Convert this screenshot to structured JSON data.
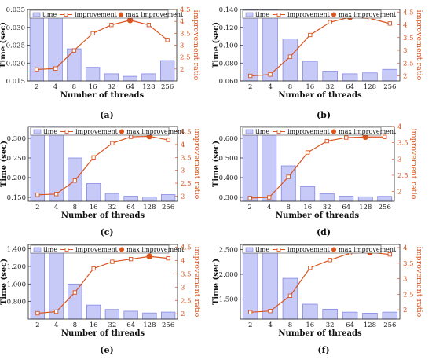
{
  "legend": {
    "time": "time",
    "improvement": "improvement",
    "max": "max improvement"
  },
  "colors": {
    "bar_fill": "#c7c9f7",
    "bar_stroke": "#7b7fe0",
    "line": "#d9541e"
  },
  "chart_data": [
    {
      "type": "bar+line",
      "caption": "(a)",
      "categories": [
        "2",
        "4",
        "8",
        "16",
        "32",
        "64",
        "128",
        "256"
      ],
      "xlabel": "Number of threads",
      "ylabel": "Time (sec)",
      "ylabel_right": "improvement ratio",
      "ylim": [
        0.015,
        0.035
      ],
      "yticks": [
        "0.015",
        "0.020",
        "0.025",
        "0.030",
        "0.035"
      ],
      "ylim_right": [
        1.5,
        4.5
      ],
      "yticks_right": [
        "2",
        "2.5",
        "3",
        "3.5",
        "4",
        "4.5"
      ],
      "series": [
        {
          "name": "time",
          "kind": "bar",
          "values": [
            0.034,
            0.034,
            0.024,
            0.0188,
            0.017,
            0.0163,
            0.017,
            0.0207
          ]
        },
        {
          "name": "improvement",
          "kind": "line",
          "values": [
            1.98,
            2.02,
            2.78,
            3.5,
            3.85,
            4.05,
            3.85,
            3.22
          ]
        }
      ],
      "max_index": 5
    },
    {
      "type": "bar+line",
      "caption": "(b)",
      "categories": [
        "2",
        "4",
        "8",
        "16",
        "32",
        "64",
        "128",
        "256"
      ],
      "xlabel": "Number of threads",
      "ylabel": "Time (sec)",
      "ylabel_right": "improvement ratio",
      "ylim": [
        0.06,
        0.14
      ],
      "yticks": [
        "0.060",
        "0.080",
        "0.100",
        "0.120",
        "0.140"
      ],
      "ylim_right": [
        1.8,
        4.6
      ],
      "yticks_right": [
        "2",
        "2.5",
        "3",
        "3.5",
        "4",
        "4.5"
      ],
      "series": [
        {
          "name": "time",
          "kind": "bar",
          "values": [
            0.144,
            0.144,
            0.107,
            0.082,
            0.071,
            0.068,
            0.069,
            0.073
          ]
        },
        {
          "name": "improvement",
          "kind": "line",
          "values": [
            2.0,
            2.05,
            2.75,
            3.6,
            4.1,
            4.3,
            4.25,
            4.05
          ]
        }
      ],
      "max_index": 5
    },
    {
      "type": "bar+line",
      "caption": "(c)",
      "categories": [
        "2",
        "4",
        "8",
        "16",
        "32",
        "64",
        "128",
        "256"
      ],
      "xlabel": "Number of threads",
      "ylabel": "Time (sec)",
      "ylabel_right": "improvement ratio",
      "ylim": [
        0.14,
        0.33
      ],
      "yticks": [
        "0.150",
        "0.200",
        "0.250",
        "0.300"
      ],
      "ylim_right": [
        1.8,
        4.7
      ],
      "yticks_right": [
        "2",
        "2.5",
        "3",
        "3.5",
        "4",
        "4.5"
      ],
      "series": [
        {
          "name": "time",
          "kind": "bar",
          "values": [
            0.33,
            0.33,
            0.25,
            0.185,
            0.16,
            0.153,
            0.151,
            0.157
          ]
        },
        {
          "name": "improvement",
          "kind": "line",
          "values": [
            2.05,
            2.08,
            2.6,
            3.5,
            4.05,
            4.3,
            4.32,
            4.18
          ]
        }
      ],
      "max_index": 6
    },
    {
      "type": "bar+line",
      "caption": "(d)",
      "categories": [
        "2",
        "4",
        "8",
        "16",
        "32",
        "64",
        "128",
        "256"
      ],
      "xlabel": "Number of threads",
      "ylabel": "Time (sec)",
      "ylabel_right": "improvement ratio",
      "ylim": [
        0.28,
        0.66
      ],
      "yticks": [
        "0.300",
        "0.400",
        "0.500",
        "0.600"
      ],
      "ylim_right": [
        1.7,
        4.0
      ],
      "yticks_right": [
        "2",
        "2.5",
        "3",
        "3.5",
        "4"
      ],
      "series": [
        {
          "name": "time",
          "kind": "bar",
          "values": [
            0.64,
            0.64,
            0.46,
            0.355,
            0.318,
            0.306,
            0.303,
            0.305
          ]
        },
        {
          "name": "improvement",
          "kind": "line",
          "values": [
            1.8,
            1.82,
            2.45,
            3.2,
            3.55,
            3.66,
            3.68,
            3.68
          ]
        }
      ],
      "max_index": 6
    },
    {
      "type": "bar+line",
      "caption": "(e)",
      "categories": [
        "2",
        "4",
        "8",
        "16",
        "32",
        "64",
        "128",
        "256"
      ],
      "xlabel": "Number of threads",
      "ylabel": "Time (sec)",
      "ylabel_right": "improvement ratio",
      "ylim": [
        0.6,
        1.45
      ],
      "yticks": [
        "0.800",
        "1.000",
        "1.200",
        "1.400"
      ],
      "ylim_right": [
        1.8,
        4.6
      ],
      "yticks_right": [
        "2",
        "2.5",
        "3",
        "3.5",
        "4",
        "4.5"
      ],
      "series": [
        {
          "name": "time",
          "kind": "bar",
          "values": [
            1.4,
            1.4,
            1.0,
            0.76,
            0.71,
            0.69,
            0.67,
            0.68
          ]
        },
        {
          "name": "improvement",
          "kind": "line",
          "values": [
            2.02,
            2.08,
            2.8,
            3.7,
            3.95,
            4.05,
            4.15,
            4.08
          ]
        }
      ],
      "max_index": 6
    },
    {
      "type": "bar+line",
      "caption": "(f)",
      "categories": [
        "2",
        "4",
        "8",
        "16",
        "32",
        "64",
        "128",
        "256"
      ],
      "xlabel": "Number of threads",
      "ylabel": "Time (sec)",
      "ylabel_right": "improvement ratio",
      "ylim": [
        1.1,
        2.6
      ],
      "yticks": [
        "1.500",
        "2.000",
        "2.500"
      ],
      "ylim_right": [
        1.7,
        4.1
      ],
      "yticks_right": [
        "2",
        "2.5",
        "3",
        "3.5",
        "4"
      ],
      "series": [
        {
          "name": "time",
          "kind": "bar",
          "values": [
            2.5,
            2.5,
            1.92,
            1.4,
            1.3,
            1.24,
            1.22,
            1.24
          ]
        },
        {
          "name": "improvement",
          "kind": "line",
          "values": [
            1.92,
            1.96,
            2.45,
            3.35,
            3.6,
            3.82,
            3.85,
            3.78
          ]
        }
      ],
      "max_index": 6
    }
  ]
}
